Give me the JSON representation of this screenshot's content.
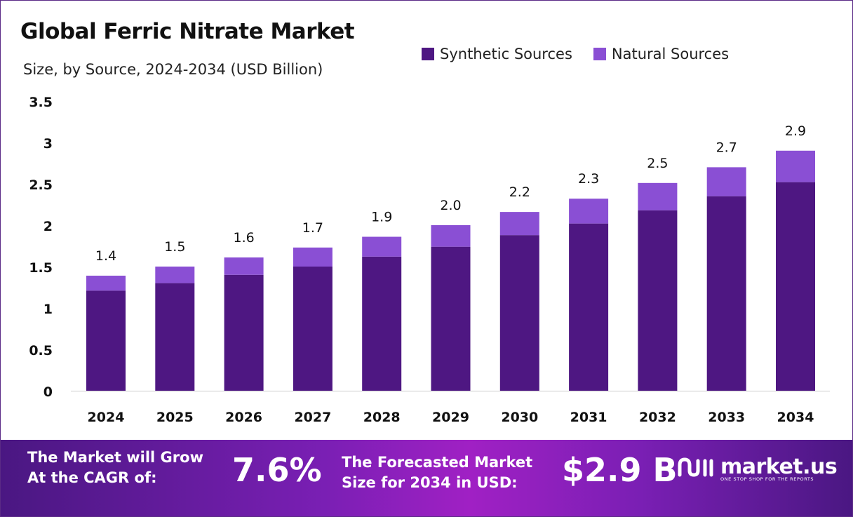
{
  "header": {
    "title": "Global Ferric Nitrate Market",
    "subtitle": "Size, by Source, 2024-2034 (USD Billion)"
  },
  "colors": {
    "synthetic": "#4e1782",
    "natural": "#8a4fd4",
    "frame": "#5b2a86"
  },
  "chart_data": {
    "type": "bar",
    "stacked": true,
    "title": "Global Ferric Nitrate Market",
    "subtitle": "Size, by Source, 2024-2034 (USD Billion)",
    "categories": [
      "2024",
      "2025",
      "2026",
      "2027",
      "2028",
      "2029",
      "2030",
      "2031",
      "2032",
      "2033",
      "2034"
    ],
    "series": [
      {
        "name": "Synthetic Sources",
        "values": [
          1.21,
          1.3,
          1.4,
          1.5,
          1.62,
          1.74,
          1.88,
          2.02,
          2.18,
          2.35,
          2.52
        ]
      },
      {
        "name": "Natural Sources",
        "values": [
          0.18,
          0.2,
          0.21,
          0.23,
          0.24,
          0.26,
          0.28,
          0.3,
          0.33,
          0.35,
          0.38
        ]
      }
    ],
    "totals_labels": [
      "1.4",
      "1.5",
      "1.6",
      "1.7",
      "1.9",
      "2.0",
      "2.2",
      "2.3",
      "2.5",
      "2.7",
      "2.9"
    ],
    "totals": [
      1.39,
      1.5,
      1.61,
      1.73,
      1.86,
      2.0,
      2.16,
      2.32,
      2.51,
      2.7,
      2.9
    ],
    "y_ticks": [
      "0",
      "0.5",
      "1",
      "1.5",
      "2",
      "2.5",
      "3",
      "3.5"
    ],
    "ylim": [
      0,
      3.5
    ],
    "xlabel": "",
    "ylabel": "",
    "grid": false,
    "legend_position": "top-right"
  },
  "footer": {
    "cagr_label_line1": "The Market will Grow",
    "cagr_label_line2": "At the CAGR of:",
    "cagr_value": "7.6%",
    "forecast_label_line1": "The Forecasted Market",
    "forecast_label_line2": "Size for 2034 in USD:",
    "forecast_value": "$2.9 B",
    "brand_name": "market.us",
    "brand_tagline": "ONE STOP SHOP FOR THE REPORTS",
    "brand_icon": "market-us-logo-icon"
  }
}
